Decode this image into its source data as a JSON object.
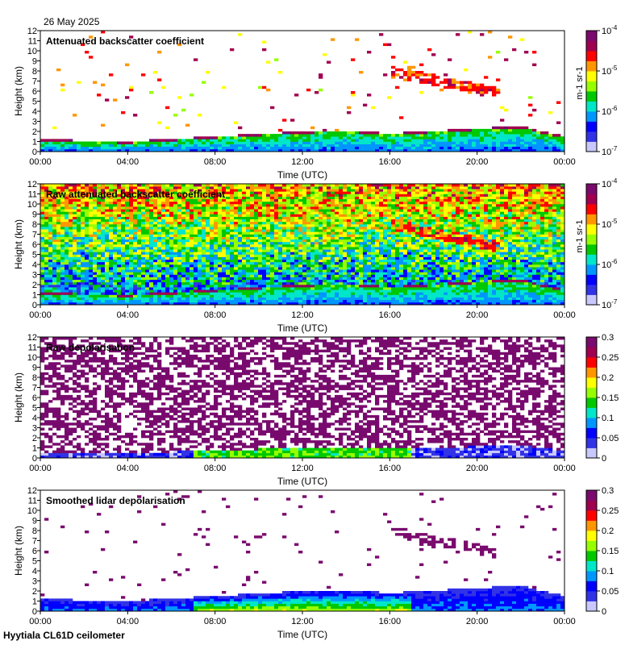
{
  "date": "26 May 2025",
  "footer": "Hyytiala CL61D ceilometer",
  "colors": {
    "scale": [
      "#ffffff",
      "#c8c8ff",
      "#3232e6",
      "#0000ff",
      "#0096ff",
      "#00e6c8",
      "#00c800",
      "#96ff00",
      "#ffff00",
      "#ff9600",
      "#ff0000",
      "#a00050",
      "#7a0a6e"
    ],
    "depol_speckle": "#780a6e"
  },
  "chart_data": [
    {
      "type": "heatmap",
      "title": "Attenuated backscatter coefficient",
      "xlabel": "Time (UTC)",
      "ylabel": "Height (km)",
      "x_ticks": [
        "00:00",
        "04:00",
        "08:00",
        "12:00",
        "16:00",
        "20:00",
        "00:00"
      ],
      "y_ticks": [
        "0",
        "1",
        "2",
        "3",
        "4",
        "5",
        "6",
        "7",
        "8",
        "9",
        "10",
        "11",
        "12"
      ],
      "xlim": [
        0,
        24
      ],
      "ylim": [
        0,
        12
      ],
      "colorbar": {
        "scale": "log",
        "ticks": [
          "10-7",
          "10-6",
          "10-5",
          "10-4"
        ],
        "unit": "m-1 sr-1",
        "range": [
          1e-07,
          0.0001
        ]
      },
      "features": {
        "boundary_layer_top_km": [
          [
            0,
            1.2
          ],
          [
            4,
            1.0
          ],
          [
            8,
            1.5
          ],
          [
            12,
            2.0
          ],
          [
            14,
            2.1
          ],
          [
            16,
            1.8
          ],
          [
            20,
            2.3
          ],
          [
            22,
            2.5
          ],
          [
            24,
            1.5
          ]
        ],
        "cloud_layer": {
          "time_start": 16,
          "time_end": 21,
          "height_start_km": 8,
          "height_end_km": 6
        }
      }
    },
    {
      "type": "heatmap",
      "title": "Raw attenuated backscatter coefficient",
      "xlabel": "Time (UTC)",
      "ylabel": "Height (km)",
      "x_ticks": [
        "00:00",
        "04:00",
        "08:00",
        "12:00",
        "16:00",
        "20:00",
        "00:00"
      ],
      "y_ticks": [
        "0",
        "1",
        "2",
        "3",
        "4",
        "5",
        "6",
        "7",
        "8",
        "9",
        "10",
        "11",
        "12"
      ],
      "xlim": [
        0,
        24
      ],
      "ylim": [
        0,
        12
      ],
      "colorbar": {
        "scale": "log",
        "ticks": [
          "10-7",
          "10-6",
          "10-5",
          "10-4"
        ],
        "unit": "m-1 sr-1",
        "range": [
          1e-07,
          0.0001
        ]
      }
    },
    {
      "type": "heatmap",
      "title": "Raw depolarisation",
      "xlabel": "Time (UTC)",
      "ylabel": "Height (km)",
      "x_ticks": [
        "00:00",
        "04:00",
        "08:00",
        "12:00",
        "16:00",
        "20:00",
        "00:00"
      ],
      "y_ticks": [
        "0",
        "1",
        "2",
        "3",
        "4",
        "5",
        "6",
        "7",
        "8",
        "9",
        "10",
        "11",
        "12"
      ],
      "xlim": [
        0,
        24
      ],
      "ylim": [
        0,
        12
      ],
      "colorbar": {
        "scale": "linear",
        "ticks": [
          "0",
          "0.05",
          "0.1",
          "0.15",
          "0.2",
          "0.25",
          "0.3"
        ],
        "range": [
          0,
          0.3
        ]
      }
    },
    {
      "type": "heatmap",
      "title": "Smoothed lidar depolarisation",
      "xlabel": "Time (UTC)",
      "ylabel": "Height (km)",
      "x_ticks": [
        "00:00",
        "04:00",
        "08:00",
        "12:00",
        "16:00",
        "20:00",
        "00:00"
      ],
      "y_ticks": [
        "0",
        "1",
        "2",
        "3",
        "4",
        "5",
        "6",
        "7",
        "8",
        "9",
        "10",
        "11",
        "12"
      ],
      "xlim": [
        0,
        24
      ],
      "ylim": [
        0,
        12
      ],
      "colorbar": {
        "scale": "linear",
        "ticks": [
          "0",
          "0.05",
          "0.1",
          "0.15",
          "0.2",
          "0.25",
          "0.3"
        ],
        "range": [
          0,
          0.3
        ]
      }
    }
  ]
}
